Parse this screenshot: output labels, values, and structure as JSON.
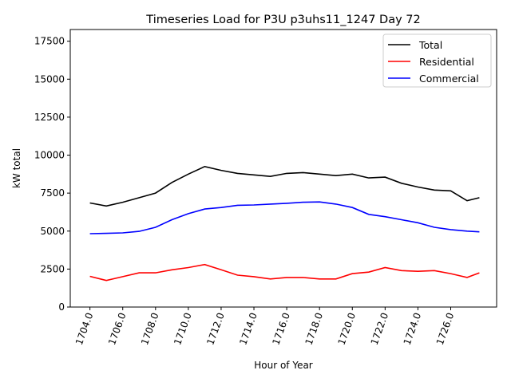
{
  "chart_data": {
    "type": "line",
    "title": "Timeseries Load for P3U p3uhs11_1247  Day 72",
    "xlabel": "Hour of Year",
    "ylabel": "kW total",
    "xlim": [
      1702.8,
      1728.8
    ],
    "ylim": [
      0,
      18270
    ],
    "xticks": [
      "1704.0",
      "1706.0",
      "1708.0",
      "1710.0",
      "1712.0",
      "1714.0",
      "1716.0",
      "1718.0",
      "1720.0",
      "1722.0",
      "1724.0",
      "1726.0"
    ],
    "xtick_values": [
      1704,
      1706,
      1708,
      1710,
      1712,
      1714,
      1716,
      1718,
      1720,
      1722,
      1724,
      1726
    ],
    "yticks": [
      "0",
      "2500",
      "5000",
      "7500",
      "10000",
      "12500",
      "15000",
      "17500"
    ],
    "ytick_values": [
      0,
      2500,
      5000,
      7500,
      10000,
      12500,
      15000,
      17500
    ],
    "legend_position": "top-right",
    "grid": false,
    "x": [
      1704,
      1705,
      1706,
      1707,
      1708,
      1709,
      1710,
      1711,
      1712,
      1713,
      1714,
      1715,
      1716,
      1717,
      1718,
      1719,
      1720,
      1721,
      1722,
      1723,
      1724,
      1725,
      1726,
      1727,
      1727.75
    ],
    "series": [
      {
        "name": "Total",
        "color": "#000000",
        "values": [
          6850,
          6650,
          6900,
          7200,
          7500,
          8200,
          8750,
          9250,
          9000,
          8800,
          8700,
          8600,
          8800,
          8850,
          8750,
          8650,
          8750,
          8500,
          8550,
          8150,
          7900,
          7700,
          7650,
          7000,
          7200
        ]
      },
      {
        "name": "Residential",
        "color": "#ff0000",
        "values": [
          2020,
          1750,
          2000,
          2250,
          2250,
          2450,
          2600,
          2800,
          2450,
          2100,
          2000,
          1850,
          1950,
          1950,
          1850,
          1850,
          2200,
          2300,
          2600,
          2400,
          2350,
          2400,
          2200,
          1950,
          2250
        ]
      },
      {
        "name": "Commercial",
        "color": "#0000ff",
        "values": [
          4830,
          4850,
          4880,
          4980,
          5250,
          5750,
          6150,
          6450,
          6550,
          6700,
          6720,
          6780,
          6830,
          6900,
          6920,
          6780,
          6550,
          6100,
          5950,
          5750,
          5550,
          5250,
          5100,
          5000,
          4950
        ]
      }
    ]
  }
}
